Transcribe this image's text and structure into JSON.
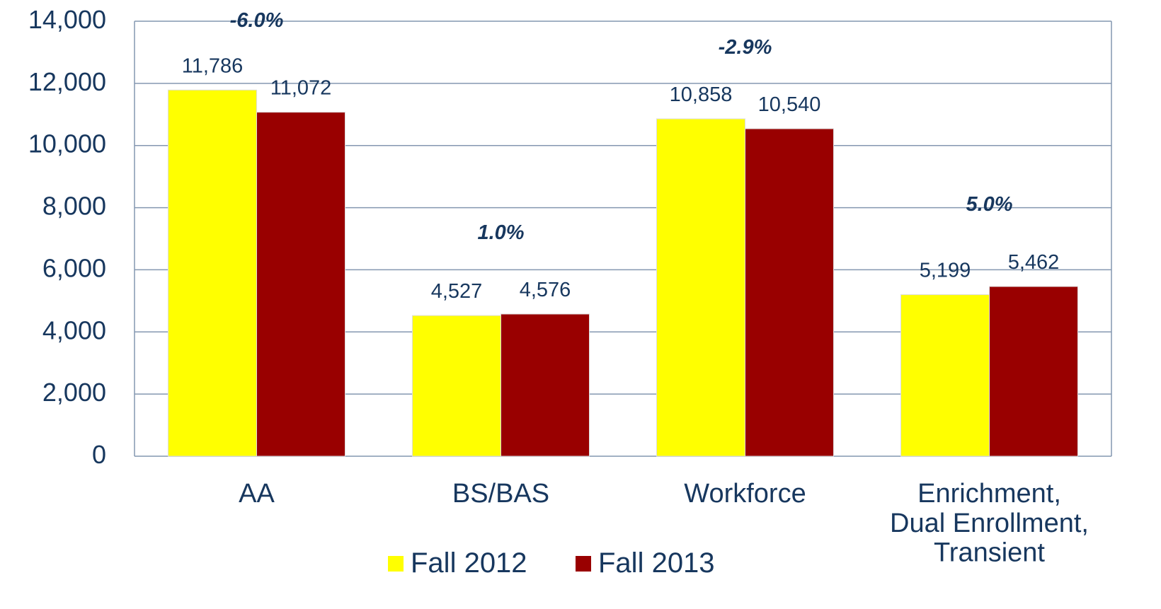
{
  "chart_data": {
    "type": "bar",
    "categories": [
      "AA",
      "BS/BAS",
      "Workforce",
      "Enrichment,\nDual Enrollment,\nTransient"
    ],
    "series": [
      {
        "name": "Fall 2012",
        "color": "#ffff00",
        "values": [
          11786,
          4527,
          10858,
          5199
        ],
        "value_labels": [
          "11,786",
          "4,527",
          "10,858",
          "5,199"
        ]
      },
      {
        "name": "Fall 2013",
        "color": "#990000",
        "values": [
          11072,
          4576,
          10540,
          5462
        ],
        "value_labels": [
          "11,072",
          "4,576",
          "10,540",
          "5,462"
        ]
      }
    ],
    "annotations": [
      "-6.0%",
      "1.0%",
      "-2.9%",
      "5.0%"
    ],
    "ylim": [
      0,
      14000
    ],
    "yticks": [
      0,
      {
        "value": 2000,
        "label": "2,000"
      },
      {
        "value": 4000,
        "label": "4,000"
      },
      {
        "value": 6000,
        "label": "6,000"
      },
      {
        "value": 8000,
        "label": "8,000"
      },
      {
        "value": 10000,
        "label": "10,000"
      },
      {
        "value": 12000,
        "label": "12,000"
      },
      {
        "value": 14000,
        "label": "14,000"
      }
    ],
    "grid": true,
    "legend": "bottom"
  }
}
